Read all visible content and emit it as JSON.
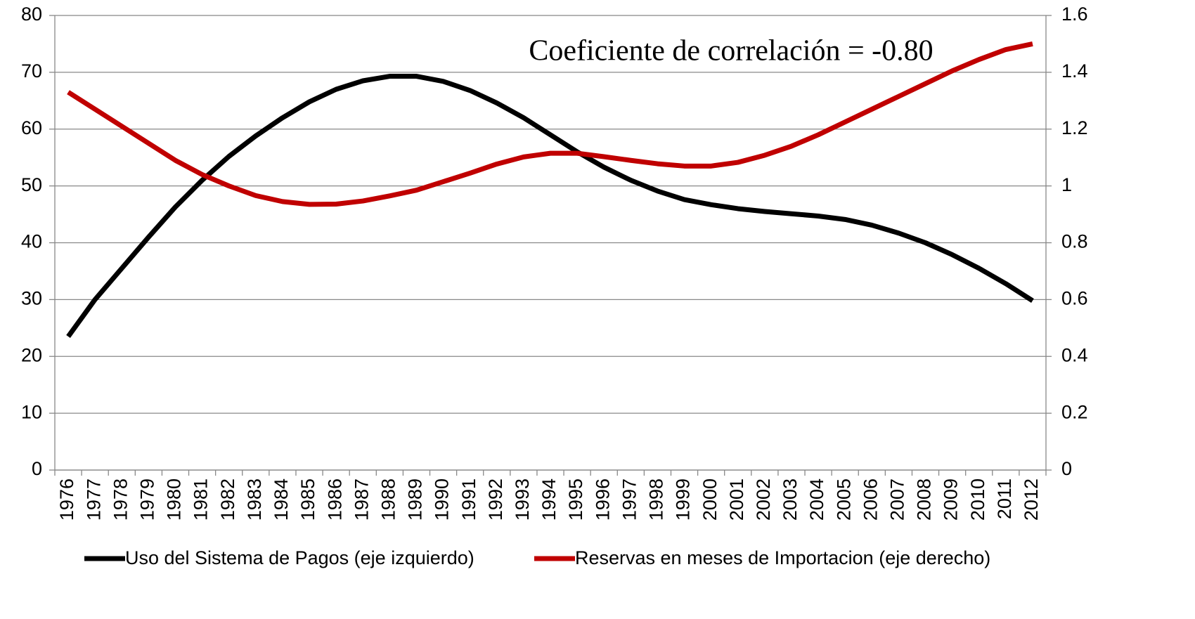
{
  "chart_data": {
    "type": "line",
    "annotation": "Coeficiente de correlación = -0.80",
    "categories": [
      "1976",
      "1977",
      "1978",
      "1979",
      "1980",
      "1981",
      "1982",
      "1983",
      "1984",
      "1985",
      "1986",
      "1987",
      "1988",
      "1989",
      "1990",
      "1991",
      "1992",
      "1993",
      "1994",
      "1995",
      "1996",
      "1997",
      "1998",
      "1999",
      "2000",
      "2001",
      "2002",
      "2003",
      "2004",
      "2005",
      "2006",
      "2007",
      "2008",
      "2009",
      "2010",
      "2011",
      "2012"
    ],
    "series": [
      {
        "name": "Uso del Sistema de Pagos (eje izquierdo)",
        "color": "#000000",
        "axis": "y",
        "values": [
          23.5,
          30,
          35.5,
          41,
          46.3,
          51,
          55.2,
          58.8,
          62,
          64.8,
          67,
          68.5,
          69.3,
          69.3,
          68.4,
          66.8,
          64.6,
          62,
          59,
          56,
          53.3,
          51,
          49.1,
          47.6,
          46.7,
          46,
          45.5,
          45.1,
          44.7,
          44.1,
          43.1,
          41.7,
          40,
          37.9,
          35.5,
          32.8,
          29.8
        ]
      },
      {
        "name": "Reservas en meses de Importacion (eje derecho)",
        "color": "#c00000",
        "axis": "y2",
        "values": [
          1.33,
          1.27,
          1.21,
          1.15,
          1.09,
          1.04,
          1.0,
          0.966,
          0.945,
          0.935,
          0.936,
          0.947,
          0.965,
          0.985,
          1.015,
          1.045,
          1.077,
          1.102,
          1.115,
          1.115,
          1.103,
          1.09,
          1.078,
          1.07,
          1.07,
          1.083,
          1.108,
          1.14,
          1.18,
          1.225,
          1.27,
          1.315,
          1.36,
          1.405,
          1.445,
          1.48,
          1.5
        ]
      }
    ],
    "ylim": [
      0,
      80
    ],
    "yticks": [
      0,
      10,
      20,
      30,
      40,
      50,
      60,
      70,
      80
    ],
    "y2lim": [
      0,
      1.6
    ],
    "y2ticks": [
      0,
      0.2,
      0.4,
      0.6,
      0.8,
      1,
      1.2,
      1.4,
      1.6
    ],
    "grid": true
  }
}
